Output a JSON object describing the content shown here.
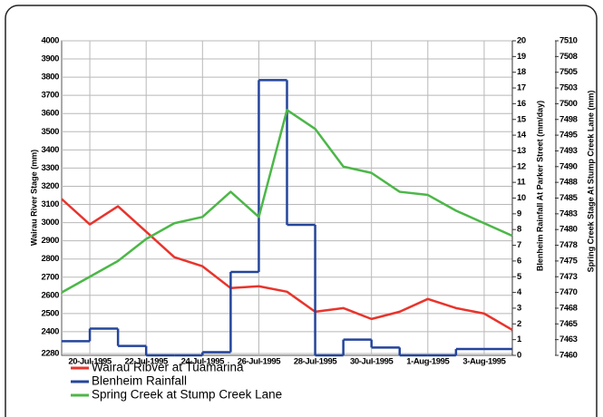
{
  "chart_data": {
    "type": "line",
    "x": [
      "1995-07-19",
      "1995-07-20",
      "1995-07-21",
      "1995-07-22",
      "1995-07-23",
      "1995-07-24",
      "1995-07-25",
      "1995-07-26",
      "1995-07-27",
      "1995-07-28",
      "1995-07-29",
      "1995-07-30",
      "1995-07-31",
      "1995-08-01",
      "1995-08-02",
      "1995-08-03",
      "1995-08-04"
    ],
    "xlim": [
      "1995-07-19",
      "1995-08-04"
    ],
    "xticks": [
      {
        "value": "1995-07-20",
        "label": "20-Jul-1995"
      },
      {
        "value": "1995-07-22",
        "label": "22-Jul-1995"
      },
      {
        "value": "1995-07-24",
        "label": "24-Jul-1995"
      },
      {
        "value": "1995-07-26",
        "label": "26-Jul-1995"
      },
      {
        "value": "1995-07-28",
        "label": "28-Jul-1995"
      },
      {
        "value": "1995-07-30",
        "label": "30-Jul-1995"
      },
      {
        "value": "1995-08-01",
        "label": "1-Aug-1995"
      },
      {
        "value": "1995-08-03",
        "label": "3-Aug-1995"
      }
    ],
    "ylabel": "Wairau River Stage (mm)",
    "ylim": [
      2270,
      4000
    ],
    "yticks": [
      2280,
      2400,
      2500,
      2600,
      2700,
      2800,
      2900,
      3000,
      3100,
      3200,
      3300,
      3400,
      3500,
      3600,
      3700,
      3800,
      3900,
      4000
    ],
    "y2label": "Blenheim Rainfall At Parker Street (mm/day)",
    "y2lim": [
      0,
      20
    ],
    "y2ticks": [
      0,
      1,
      2,
      3,
      4,
      5,
      6,
      7,
      8,
      9,
      10,
      11,
      12,
      13,
      14,
      15,
      16,
      17,
      18,
      19,
      20
    ],
    "y3label": "Spring Creek Stage At Stump Creek Lane (mm)",
    "y3lim": [
      7460,
      7510
    ],
    "y3ticks": [
      7460,
      {
        "value": 7462.5,
        "label": "7463"
      },
      7465,
      {
        "value": 7467.5,
        "label": "7468"
      },
      7470,
      {
        "value": 7472.5,
        "label": "7473"
      },
      7475,
      {
        "value": 7477.5,
        "label": "7478"
      },
      7480,
      {
        "value": 7482.5,
        "label": "7483"
      },
      7485,
      {
        "value": 7487.5,
        "label": "7488"
      },
      7490,
      {
        "value": 7492.5,
        "label": "7493"
      },
      7495,
      {
        "value": 7497.5,
        "label": "7498"
      },
      7500,
      {
        "value": 7502.5,
        "label": "7503"
      },
      7505,
      {
        "value": 7507.5,
        "label": "7508"
      },
      7510
    ],
    "grid": true,
    "series": [
      {
        "name": "Wairau Ribver at Tuamarina",
        "color": "#e8342c",
        "values": [
          3130,
          2990,
          3090,
          2950,
          2810,
          2760,
          2640,
          2650,
          2620,
          2510,
          2530,
          2470,
          2510,
          2580,
          2530,
          2500,
          2410
        ]
      },
      {
        "name": "Blenheim Rainfall",
        "color": "#24459b",
        "axis": "y2",
        "drawstyle": "steps-post",
        "values": [
          0.9,
          1.7,
          0.6,
          0,
          0,
          0.2,
          5.3,
          17.5,
          8.3,
          0,
          1,
          0.5,
          0,
          0,
          0.4,
          0.4,
          null
        ]
      },
      {
        "name": "Spring Creek at Stump Creek Lane",
        "color": "#4cb748",
        "axis": "y3",
        "values": [
          7470,
          7472.5,
          7475,
          7478.5,
          7481,
          7482,
          7486,
          7482,
          7499,
          7496,
          7490,
          7489,
          7486,
          7485.5,
          7483,
          7481,
          7479
        ]
      }
    ]
  }
}
